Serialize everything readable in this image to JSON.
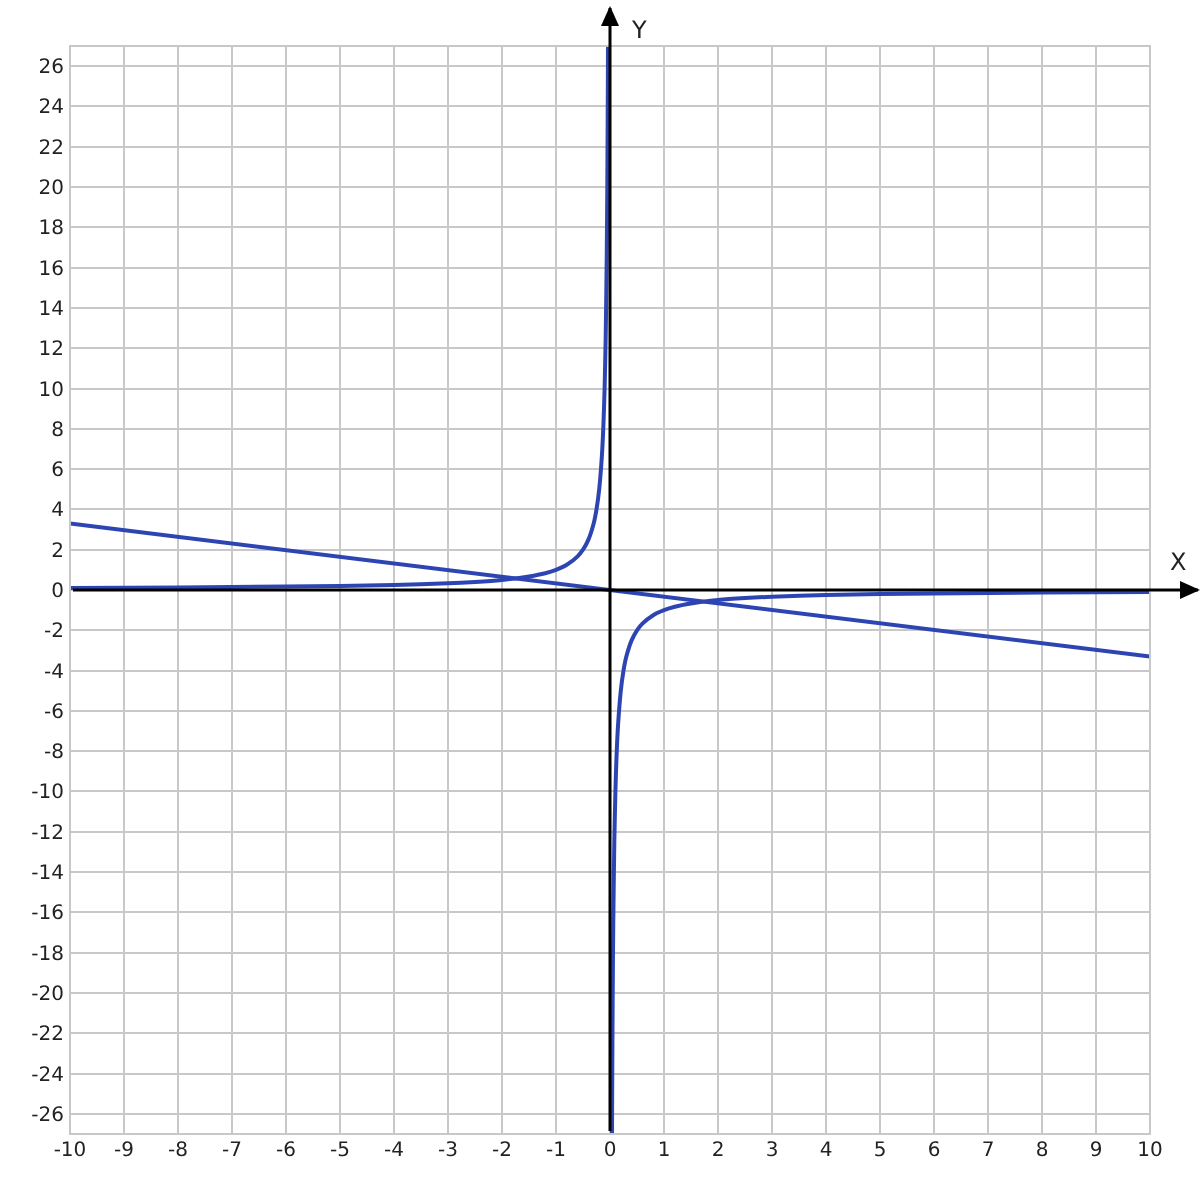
{
  "chart_data": {
    "type": "line",
    "xlabel": "X",
    "ylabel": "Y",
    "xlim": [
      -10,
      10
    ],
    "ylim": [
      -27,
      27
    ],
    "xticks": [
      -10,
      -9,
      -8,
      -7,
      -6,
      -5,
      -4,
      -3,
      -2,
      -1,
      0,
      1,
      2,
      3,
      4,
      5,
      6,
      7,
      8,
      9,
      10
    ],
    "yticks": [
      -26,
      -24,
      -22,
      -20,
      -18,
      -16,
      -14,
      -12,
      -10,
      -8,
      -6,
      -4,
      -2,
      0,
      2,
      4,
      6,
      8,
      10,
      12,
      14,
      16,
      18,
      20,
      22,
      24,
      26
    ],
    "grid": true,
    "marker": "none",
    "line_style": "solid",
    "series": [
      {
        "color": "#2d45b3",
        "x": [
          -10,
          -8,
          -6,
          -5,
          -4,
          -3,
          -2.5,
          -2,
          -1.5,
          -1.2,
          -1,
          -0.8,
          -0.6,
          -0.5,
          -0.4,
          -0.3,
          -0.25,
          -0.2,
          -0.15,
          -0.12,
          -0.1,
          -0.08,
          -0.06,
          -0.05,
          -0.04,
          -0.0371
        ],
        "values": [
          0.1,
          0.13,
          0.17,
          0.2,
          0.25,
          0.33,
          0.4,
          0.5,
          0.67,
          0.83,
          1,
          1.25,
          1.67,
          2,
          2.5,
          3.33,
          4,
          5,
          6.67,
          8.33,
          10,
          12.5,
          16.67,
          20,
          25,
          27
        ]
      },
      {
        "color": "#2d45b3",
        "x": [
          0.0371,
          0.04,
          0.05,
          0.06,
          0.08,
          0.1,
          0.12,
          0.15,
          0.2,
          0.25,
          0.3,
          0.4,
          0.5,
          0.6,
          0.8,
          1,
          1.2,
          1.5,
          2,
          2.5,
          3,
          4,
          5,
          6,
          8,
          10
        ],
        "values": [
          -27,
          -25,
          -20,
          -16.67,
          -12.5,
          -10,
          -8.33,
          -6.67,
          -5,
          -4,
          -3.33,
          -2.5,
          -2,
          -1.67,
          -1.25,
          -1,
          -0.83,
          -0.67,
          -0.5,
          -0.4,
          -0.33,
          -0.25,
          -0.2,
          -0.17,
          -0.13,
          -0.1
        ]
      },
      {
        "color": "#2d45b3",
        "x": [
          -10,
          10
        ],
        "values": [
          3.3,
          -3.3
        ]
      }
    ]
  }
}
